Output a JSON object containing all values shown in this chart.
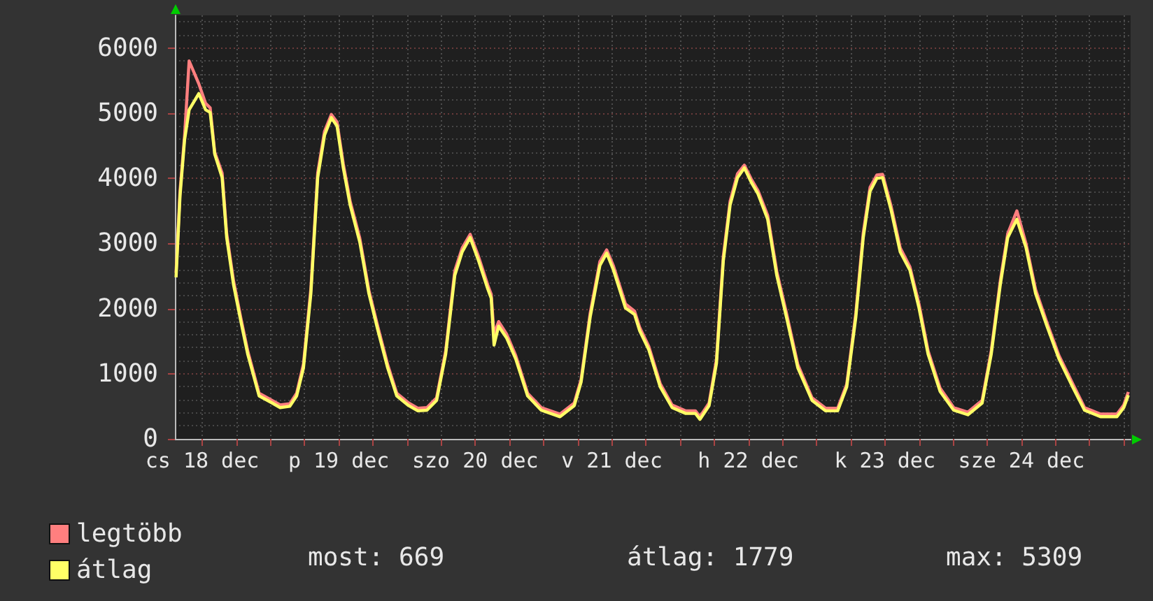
{
  "chart_data": {
    "type": "line",
    "x": [
      "--12-18T07:24",
      "--12-18T08:06",
      "--12-18T08:54",
      "--12-18T09:42",
      "--12-18T11:24",
      "--12-18T12:36",
      "--12-18T13:24",
      "--12-18T14:12",
      "--12-18T15:30",
      "--12-18T16:18",
      "--12-18T17:30",
      "--12-18T18:48",
      "--12-18T20:00",
      "--12-18T22:00",
      "--12-19T00:06",
      "--12-19T01:42",
      "--12-19T03:24",
      "--12-19T04:36",
      "--12-19T05:48",
      "--12-19T07:06",
      "--12-19T08:18",
      "--12-19T09:30",
      "--12-19T10:42",
      "--12-19T11:42",
      "--12-19T12:48",
      "--12-19T14:00",
      "--12-19T15:42",
      "--12-19T17:18",
      "--12-19T18:54",
      "--12-19T20:36",
      "--12-19T22:12",
      "--12-20T00:18",
      "--12-20T01:54",
      "--12-20T03:30",
      "--12-20T05:12",
      "--12-20T06:48",
      "--12-20T08:24",
      "--12-20T09:42",
      "--12-20T11:06",
      "--12-20T12:36",
      "--12-20T14:12",
      "--12-20T14:48",
      "--12-20T15:18",
      "--12-20T16:06",
      "--12-20T17:30",
      "--12-20T19:06",
      "--12-20T21:12",
      "--12-20T23:36",
      "--12-21T02:54",
      "--12-21T05:24",
      "--12-21T06:36",
      "--12-21T08:12",
      "--12-21T09:54",
      "--12-21T11:06",
      "--12-21T12:18",
      "--12-21T14:24",
      "--12-21T16:00",
      "--12-21T16:54",
      "--12-21T18:30",
      "--12-21T20:30",
      "--12-21T22:36",
      "--12-22T01:00",
      "--12-22T02:42",
      "--12-22T03:30",
      "--12-22T05:06",
      "--12-22T06:24",
      "--12-22T07:36",
      "--12-22T08:48",
      "--12-22T10:06",
      "--12-22T11:18",
      "--12-22T12:30",
      "--12-22T13:42",
      "--12-22T15:24",
      "--12-22T17:00",
      "--12-22T18:42",
      "--12-22T20:42",
      "--12-22T23:12",
      "--12-23T01:36",
      "--12-23T03:42",
      "--12-23T05:18",
      "--12-23T06:54",
      "--12-23T08:12",
      "--12-23T09:24",
      "--12-23T10:36",
      "--12-23T11:36",
      "--12-23T13:06",
      "--12-23T14:42",
      "--12-23T16:24",
      "--12-23T18:00",
      "--12-23T19:36",
      "--12-23T21:42",
      "--12-24T00:06",
      "--12-24T02:36",
      "--12-24T05:06",
      "--12-24T06:42",
      "--12-24T08:18",
      "--12-24T09:36",
      "--12-24T11:12",
      "--12-24T12:48",
      "--12-24T14:30",
      "--12-24T16:30",
      "--12-24T18:36",
      "--12-24T21:00",
      "--12-24T23:06",
      "--12-25T01:54",
      "--12-25T04:48",
      "--12-25T06:00",
      "--12-25T06:48"
    ],
    "series": [
      {
        "name": "legtöbb",
        "color": "#ff7f7f",
        "values": [
          2550,
          3800,
          4650,
          5800,
          5450,
          5150,
          5080,
          4400,
          4080,
          3150,
          2430,
          1850,
          1350,
          700,
          600,
          520,
          540,
          700,
          1150,
          2300,
          4080,
          4720,
          4980,
          4860,
          4220,
          3650,
          3080,
          2280,
          1710,
          1140,
          700,
          550,
          470,
          480,
          630,
          1350,
          2580,
          2930,
          3140,
          2790,
          2360,
          2220,
          1600,
          1800,
          1610,
          1280,
          700,
          480,
          380,
          550,
          910,
          1930,
          2720,
          2900,
          2650,
          2070,
          1960,
          1710,
          1420,
          850,
          520,
          430,
          430,
          340,
          550,
          1220,
          2800,
          3650,
          4070,
          4200,
          3990,
          3810,
          3430,
          2570,
          1930,
          1140,
          630,
          470,
          470,
          840,
          1930,
          3160,
          3860,
          4050,
          4060,
          3570,
          2930,
          2640,
          2070,
          1350,
          780,
          480,
          410,
          590,
          1350,
          2430,
          3150,
          3500,
          3000,
          2290,
          1780,
          1280,
          850,
          480,
          380,
          380,
          520,
          720
        ]
      },
      {
        "name": "átlag",
        "color": "#ffff66",
        "values": [
          2480,
          3730,
          4590,
          5050,
          5300,
          5050,
          5010,
          4370,
          4010,
          3090,
          2370,
          1800,
          1300,
          660,
          560,
          480,
          500,
          660,
          1090,
          2230,
          4010,
          4660,
          4930,
          4800,
          4160,
          3590,
          3020,
          2230,
          1660,
          1090,
          660,
          510,
          430,
          440,
          590,
          1300,
          2510,
          2870,
          3090,
          2730,
          2300,
          2160,
          1440,
          1730,
          1550,
          1230,
          660,
          440,
          340,
          510,
          870,
          1870,
          2660,
          2850,
          2590,
          2010,
          1910,
          1660,
          1370,
          800,
          480,
          390,
          390,
          300,
          510,
          1160,
          2730,
          3590,
          4010,
          4160,
          3940,
          3760,
          3370,
          2510,
          1870,
          1090,
          590,
          430,
          430,
          800,
          1870,
          3090,
          3800,
          4000,
          4010,
          3510,
          2870,
          2590,
          2010,
          1300,
          730,
          440,
          370,
          550,
          1300,
          2370,
          3090,
          3370,
          2940,
          2230,
          1730,
          1230,
          800,
          440,
          340,
          340,
          480,
          670
        ]
      }
    ],
    "xlim": [
      "--12-18T07:12",
      "--12-25T07:12"
    ],
    "xticks": [
      {
        "value": "--12-18T12:00",
        "label": "cs 18 dec"
      },
      {
        "value": "--12-18T18:00",
        "label": null
      },
      {
        "value": "--12-19T00:00",
        "label": null
      },
      {
        "value": "--12-19T06:00",
        "label": null
      },
      {
        "value": "--12-19T12:00",
        "label": "p 19 dec"
      },
      {
        "value": "--12-19T18:00",
        "label": null
      },
      {
        "value": "--12-20T00:00",
        "label": null
      },
      {
        "value": "--12-20T06:00",
        "label": null
      },
      {
        "value": "--12-20T12:00",
        "label": "szo 20 dec"
      },
      {
        "value": "--12-20T18:00",
        "label": null
      },
      {
        "value": "--12-21T00:00",
        "label": null
      },
      {
        "value": "--12-21T06:00",
        "label": null
      },
      {
        "value": "--12-21T12:00",
        "label": "v 21 dec"
      },
      {
        "value": "--12-21T18:00",
        "label": null
      },
      {
        "value": "--12-22T00:00",
        "label": null
      },
      {
        "value": "--12-22T06:00",
        "label": null
      },
      {
        "value": "--12-22T12:00",
        "label": "h 22 dec"
      },
      {
        "value": "--12-22T18:00",
        "label": null
      },
      {
        "value": "--12-23T00:00",
        "label": null
      },
      {
        "value": "--12-23T06:00",
        "label": null
      },
      {
        "value": "--12-23T12:00",
        "label": "k 23 dec"
      },
      {
        "value": "--12-23T18:00",
        "label": null
      },
      {
        "value": "--12-24T00:00",
        "label": null
      },
      {
        "value": "--12-24T06:00",
        "label": null
      },
      {
        "value": "--12-24T12:00",
        "label": "sze 24 dec"
      },
      {
        "value": "--12-24T18:00",
        "label": null
      },
      {
        "value": "--12-25T00:00",
        "label": null
      },
      {
        "value": "--12-25T06:00",
        "label": null
      }
    ],
    "ylim": [
      0,
      6500
    ],
    "yticks": [
      0,
      1000,
      2000,
      3000,
      4000,
      5000,
      6000
    ],
    "grid": true,
    "legend": "bottom left",
    "annotations": [
      "most: 669",
      "átlag: 1779",
      "max: 5309"
    ]
  }
}
